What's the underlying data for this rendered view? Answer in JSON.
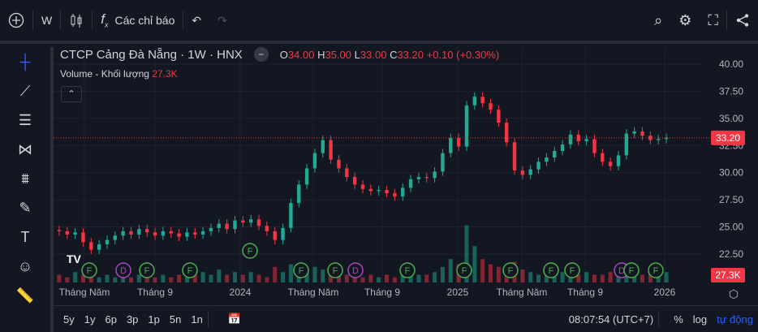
{
  "toolbar": {
    "interval": "W",
    "indicators": "Các chỉ báo",
    "icons": [
      "plus-circle-icon",
      "candles-icon",
      "fx-icon",
      "undo-icon",
      "redo-icon",
      "snapshot-search-icon",
      "gear-icon",
      "fullscreen-icon",
      "share-icon"
    ]
  },
  "legend": {
    "title": "CTCP Cảng Đà Nẵng · 1W · HNX",
    "o_label": "O",
    "o": "34.00",
    "h_label": "H",
    "h": "35.00",
    "l_label": "L",
    "l": "33.00",
    "c_label": "C",
    "c": "33.20",
    "change": "+0.10 (+0.30%)",
    "volume_label": "Volume - Khối lượng",
    "volume": "27.3K"
  },
  "colors": {
    "up": "#22ab94",
    "down": "#f23645",
    "marker_f": "#4caf50",
    "marker_d": "#ab47bc",
    "accent": "#2962ff"
  },
  "chart_data": {
    "type": "candlestick",
    "y_ticks": [
      "40.00",
      "37.50",
      "35.00",
      "32.50",
      "30.00",
      "27.50",
      "25.00",
      "22.50"
    ],
    "ylim": [
      21,
      41
    ],
    "x_ticks": [
      "Tháng Năm",
      "Tháng 9",
      "2024",
      "Tháng Năm",
      "Tháng 9",
      "2025",
      "Tháng Năm",
      "Tháng 9",
      "2026"
    ],
    "last_price": "33.20",
    "last_volume": "27.3K",
    "closes": [
      24.6,
      24.3,
      24.5,
      23.6,
      22.9,
      23.4,
      23.8,
      24.2,
      24.6,
      24.3,
      24.8,
      24.5,
      24.2,
      24.6,
      24.4,
      24.1,
      24.5,
      24.3,
      24.6,
      24.9,
      25.3,
      24.8,
      25.6,
      25.4,
      25.7,
      25.1,
      24.6,
      23.8,
      24.9,
      27.2,
      28.9,
      30.4,
      31.8,
      33.0,
      31.2,
      30.4,
      29.6,
      28.9,
      28.5,
      28.3,
      28.4,
      28.1,
      27.8,
      28.6,
      29.4,
      29.6,
      29.5,
      30.1,
      31.8,
      33.2,
      32.4,
      36.2,
      37.0,
      36.4,
      35.8,
      34.6,
      32.8,
      30.2,
      29.8,
      30.3,
      31.0,
      31.4,
      32.0,
      32.6,
      33.5,
      32.9,
      33.1,
      31.8,
      31.0,
      30.6,
      31.6,
      33.6,
      33.8,
      33.4,
      33.0,
      33.1,
      33.2
    ],
    "volumes": [
      3,
      2,
      4,
      3,
      5,
      2,
      3,
      2,
      3,
      2,
      3,
      4,
      2,
      3,
      2,
      3,
      2,
      3,
      4,
      3,
      5,
      3,
      4,
      3,
      4,
      3,
      2,
      6,
      4,
      7,
      5,
      4,
      6,
      5,
      3,
      4,
      3,
      3,
      2,
      3,
      2,
      3,
      2,
      3,
      4,
      3,
      3,
      4,
      6,
      9,
      7,
      22,
      14,
      9,
      7,
      6,
      5,
      8,
      5,
      4,
      3,
      4,
      3,
      4,
      5,
      3,
      4,
      3,
      3,
      4,
      3,
      6,
      4,
      3,
      4,
      3,
      4
    ],
    "events": [
      {
        "t": "F"
      },
      {
        "t": "D"
      },
      {
        "t": "F"
      },
      {
        "t": "F"
      },
      {
        "t": "F"
      },
      {
        "t": "F"
      },
      {
        "t": "F"
      },
      {
        "t": "D"
      },
      {
        "t": "F"
      },
      {
        "t": "F"
      },
      {
        "t": "F"
      },
      {
        "t": "F"
      },
      {
        "t": "F"
      },
      {
        "t": "D"
      },
      {
        "t": "F"
      },
      {
        "t": "F"
      }
    ]
  },
  "bottom": {
    "ranges": [
      "5y",
      "1y",
      "6p",
      "3p",
      "1p",
      "5n",
      "1n"
    ],
    "time": "08:07:54 (UTC+7)",
    "percent": "%",
    "log": "log",
    "auto": "tự động"
  }
}
